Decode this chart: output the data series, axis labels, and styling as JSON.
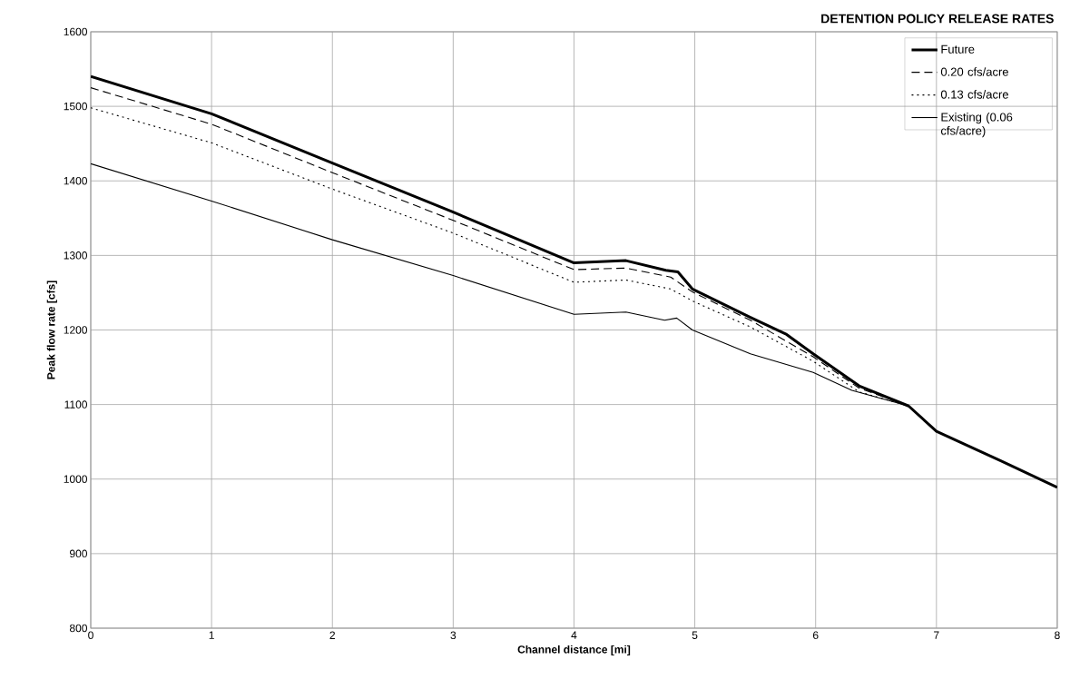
{
  "chart_data": {
    "type": "line",
    "title": "DETENTION POLICY RELEASE RATES",
    "xlabel": "Channel distance [mi]",
    "ylabel": "Peak flow rate [cfs]",
    "xlim": [
      0,
      8
    ],
    "ylim": [
      800,
      1600
    ],
    "xticks": [
      0,
      1,
      2,
      3,
      4,
      5,
      6,
      7,
      8
    ],
    "yticks": [
      800,
      900,
      1000,
      1100,
      1200,
      1300,
      1400,
      1500,
      1600
    ],
    "grid": true,
    "legend": "top right",
    "marker": "none",
    "series": [
      {
        "name": "Future",
        "color": "#000000",
        "line_style": "solid",
        "x": [
          0,
          1,
          2,
          3,
          4,
          4.43,
          4.76,
          4.86,
          4.98,
          5.46,
          5.76,
          5.98,
          6.36,
          6.77,
          7,
          7.5,
          8
        ],
        "values": [
          1540,
          1490,
          1424,
          1358,
          1290,
          1293,
          1280,
          1278,
          1255,
          1217,
          1194,
          1168,
          1125,
          1098,
          1064,
          1027,
          989
        ]
      },
      {
        "name": "0.20 cfs/acre",
        "color": "#000000",
        "line_style": "dashed",
        "x": [
          0,
          1,
          2,
          3,
          4,
          4.43,
          4.8,
          4.98,
          5.46,
          5.98,
          6.36,
          6.77
        ],
        "values": [
          1525,
          1476,
          1411,
          1347,
          1281,
          1283,
          1271,
          1251,
          1213,
          1164,
          1122,
          1098
        ]
      },
      {
        "name": "0.13 cfs/acre",
        "color": "#000000",
        "line_style": "dotted",
        "x": [
          0,
          1,
          2,
          3,
          4,
          4.43,
          4.8,
          4.98,
          5.46,
          5.98,
          6.36,
          6.77
        ],
        "values": [
          1498,
          1451,
          1389,
          1330,
          1264,
          1267,
          1255,
          1239,
          1204,
          1158,
          1117,
          1098
        ]
      },
      {
        "name": "Existing (0.06 cfs/acre)",
        "color": "#000000",
        "line_style": "solid",
        "x": [
          0,
          1,
          2,
          3,
          4,
          4.43,
          4.75,
          4.85,
          4.98,
          5.46,
          5.98,
          6.3,
          6.77
        ],
        "values": [
          1423,
          1373,
          1321,
          1273,
          1221,
          1224,
          1213,
          1216,
          1200,
          1168,
          1143,
          1119,
          1098
        ]
      }
    ]
  }
}
